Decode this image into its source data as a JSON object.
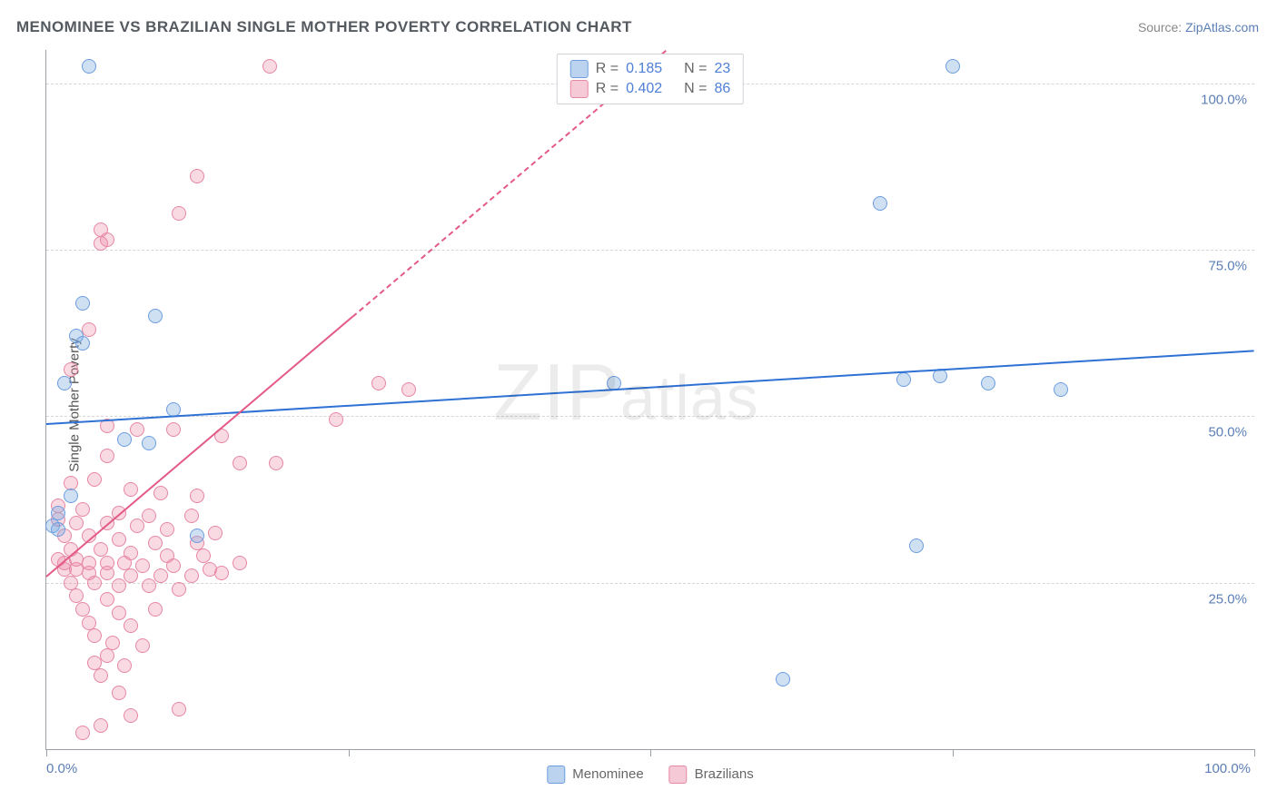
{
  "title": "MENOMINEE VS BRAZILIAN SINGLE MOTHER POVERTY CORRELATION CHART",
  "source_prefix": "Source: ",
  "source_link": "ZipAtlas.com",
  "ylabel": "Single Mother Poverty",
  "watermark": "ZIPatlas",
  "chart": {
    "type": "scatter",
    "xlim": [
      0,
      100
    ],
    "ylim": [
      0,
      105
    ],
    "background_color": "#ffffff",
    "grid_color": "#d6d6d6",
    "axis_color": "#9aa0a6",
    "tick_label_color": "#5b7fb5",
    "ytick_values": [
      25,
      50,
      75,
      100
    ],
    "ytick_labels": [
      "25.0%",
      "50.0%",
      "75.0%",
      "100.0%"
    ],
    "xtick_values": [
      0,
      25,
      50,
      75,
      100
    ],
    "xtick_labels": {
      "0": "0.0%",
      "100": "100.0%"
    },
    "marker_radius": 8,
    "marker_border_width": 1.5,
    "series": [
      {
        "name": "Menominee",
        "color_fill": "rgba(120,165,220,0.35)",
        "color_stroke": "#6b9de0",
        "swatch_fill": "#bcd3f0",
        "swatch_border": "#6b9de0",
        "r": "0.185",
        "n": "23",
        "trend": {
          "y_at_x0": 49,
          "y_at_x100": 60,
          "color": "#2f71d4"
        },
        "points": [
          [
            3.5,
            102.5
          ],
          [
            75,
            102.5
          ],
          [
            3,
            67
          ],
          [
            9,
            65
          ],
          [
            69,
            82
          ],
          [
            2.5,
            62
          ],
          [
            3,
            61
          ],
          [
            1.5,
            55
          ],
          [
            10.5,
            51
          ],
          [
            6.5,
            46.5
          ],
          [
            8.5,
            46
          ],
          [
            2,
            38
          ],
          [
            1,
            35.5
          ],
          [
            0.5,
            33.5
          ],
          [
            1,
            33
          ],
          [
            12.5,
            32
          ],
          [
            47,
            55
          ],
          [
            71,
            55.5
          ],
          [
            74,
            56
          ],
          [
            78,
            55
          ],
          [
            84,
            54
          ],
          [
            72,
            30.5
          ],
          [
            61,
            10.5
          ]
        ]
      },
      {
        "name": "Brazilians",
        "color_fill": "rgba(235,130,160,0.30)",
        "color_stroke": "#e687a4",
        "swatch_fill": "#f6c9d6",
        "swatch_border": "#e687a4",
        "r": "0.402",
        "n": "86",
        "trend": {
          "y_at_x0": 26,
          "y_at_x100": 180,
          "color": "#e35a86"
        },
        "points": [
          [
            18.5,
            102.5
          ],
          [
            12.5,
            86
          ],
          [
            11,
            80.5
          ],
          [
            4.5,
            78
          ],
          [
            5,
            76.5
          ],
          [
            4.5,
            76
          ],
          [
            3.5,
            63
          ],
          [
            2,
            57
          ],
          [
            5,
            48.5
          ],
          [
            7.5,
            48
          ],
          [
            10.5,
            48
          ],
          [
            14.5,
            47
          ],
          [
            16,
            43
          ],
          [
            19,
            43
          ],
          [
            5,
            44
          ],
          [
            24,
            49.5
          ],
          [
            27.5,
            55
          ],
          [
            30,
            54
          ],
          [
            2,
            40
          ],
          [
            4,
            40.5
          ],
          [
            7,
            39
          ],
          [
            9.5,
            38.5
          ],
          [
            12.5,
            38
          ],
          [
            1,
            36.5
          ],
          [
            3,
            36
          ],
          [
            6,
            35.5
          ],
          [
            8.5,
            35
          ],
          [
            12,
            35
          ],
          [
            1,
            34.5
          ],
          [
            2.5,
            34
          ],
          [
            5,
            34
          ],
          [
            7.5,
            33.5
          ],
          [
            10,
            33
          ],
          [
            14,
            32.5
          ],
          [
            1.5,
            32
          ],
          [
            3.5,
            32
          ],
          [
            6,
            31.5
          ],
          [
            9,
            31
          ],
          [
            12.5,
            31
          ],
          [
            2,
            30
          ],
          [
            4.5,
            30
          ],
          [
            7,
            29.5
          ],
          [
            10,
            29
          ],
          [
            13,
            29
          ],
          [
            1,
            28.5
          ],
          [
            1.5,
            28
          ],
          [
            2.5,
            28.5
          ],
          [
            3.5,
            28
          ],
          [
            5,
            28
          ],
          [
            6.5,
            28
          ],
          [
            8,
            27.5
          ],
          [
            10.5,
            27.5
          ],
          [
            13.5,
            27
          ],
          [
            16,
            28
          ],
          [
            1.5,
            27
          ],
          [
            2.5,
            27
          ],
          [
            3.5,
            26.5
          ],
          [
            5,
            26.5
          ],
          [
            7,
            26
          ],
          [
            9.5,
            26
          ],
          [
            12,
            26
          ],
          [
            14.5,
            26.5
          ],
          [
            2,
            25
          ],
          [
            4,
            25
          ],
          [
            6,
            24.5
          ],
          [
            8.5,
            24.5
          ],
          [
            11,
            24
          ],
          [
            2.5,
            23
          ],
          [
            5,
            22.5
          ],
          [
            3,
            21
          ],
          [
            6,
            20.5
          ],
          [
            9,
            21
          ],
          [
            3.5,
            19
          ],
          [
            7,
            18.5
          ],
          [
            4,
            17
          ],
          [
            5.5,
            16
          ],
          [
            8,
            15.5
          ],
          [
            5,
            14
          ],
          [
            4,
            13
          ],
          [
            6.5,
            12.5
          ],
          [
            4.5,
            11
          ],
          [
            6,
            8.5
          ],
          [
            11,
            6
          ],
          [
            7,
            5
          ],
          [
            4.5,
            3.5
          ],
          [
            3,
            2.5
          ]
        ]
      }
    ]
  },
  "legend_bottom": [
    {
      "label": "Menominee",
      "series": 0
    },
    {
      "label": "Brazilians",
      "series": 1
    }
  ]
}
